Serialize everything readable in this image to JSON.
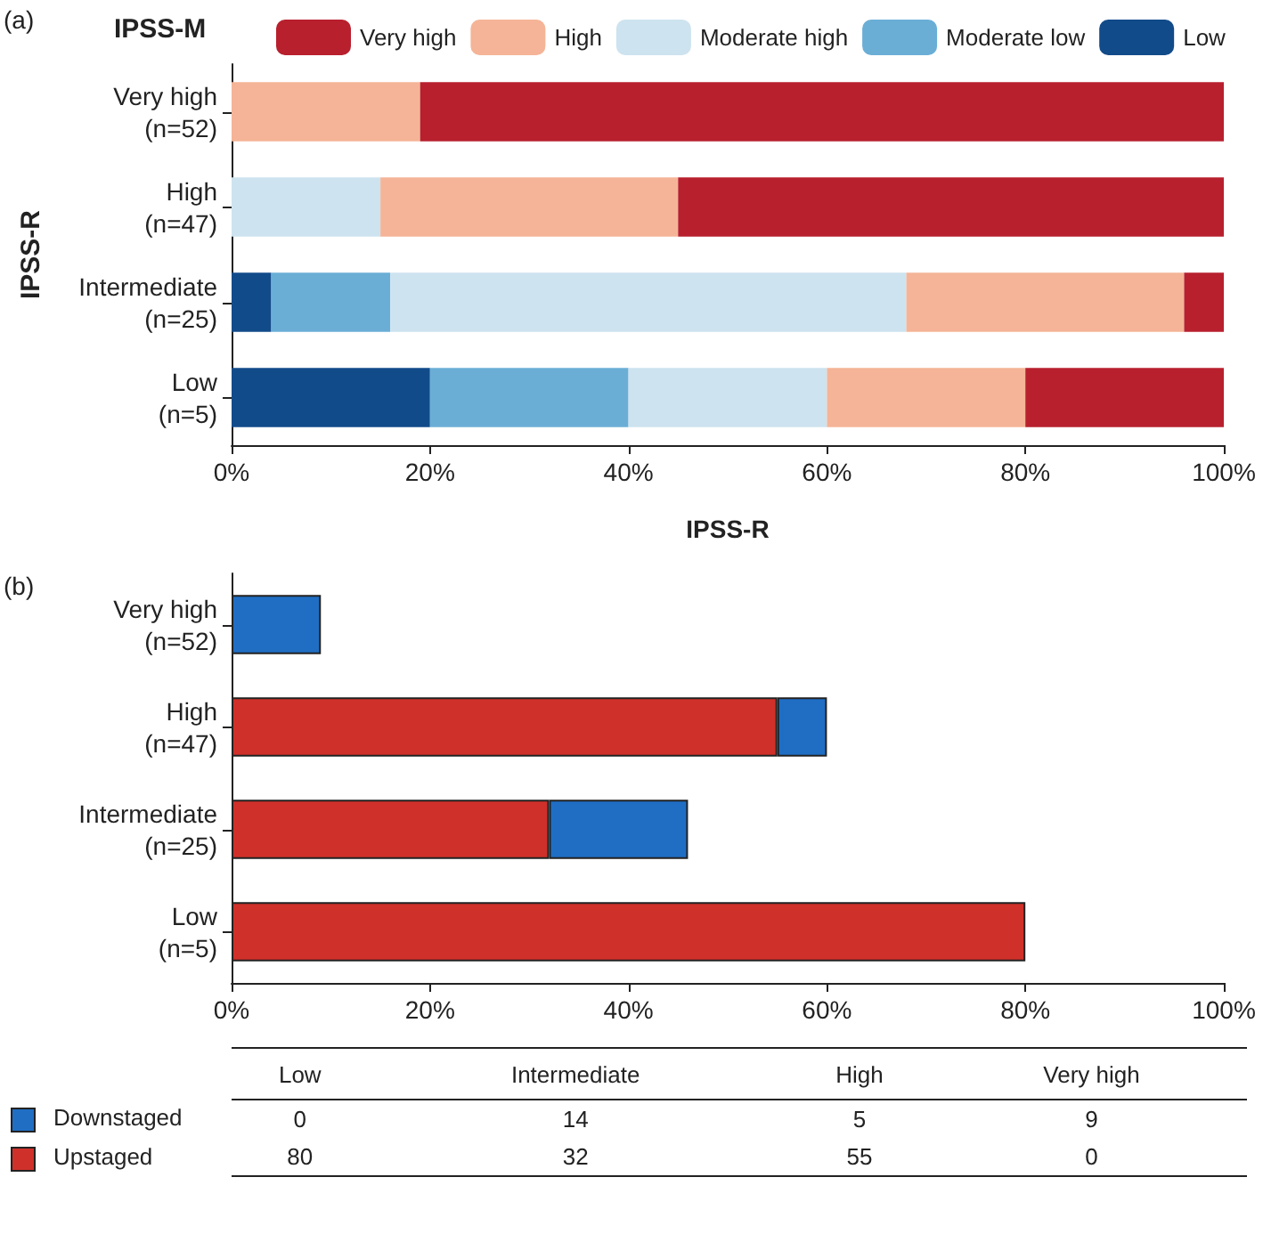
{
  "chart_data": [
    {
      "type": "bar",
      "orientation": "horizontal",
      "stacked": true,
      "legend_title": "IPSS-M",
      "ylabel": "IPSS-R",
      "xlabel": "IPSS-R",
      "annotations": [
        "(a)"
      ],
      "categories": [
        "Very high\n(n=52)",
        "High\n(n=47)",
        "Intermediate\n(n=25)",
        "Low\n(n=5)"
      ],
      "series": [
        {
          "name": "Low",
          "color": "#124b8a",
          "values": [
            0,
            0,
            4,
            20
          ]
        },
        {
          "name": "Moderate low",
          "color": "#6aaed6",
          "values": [
            0,
            0,
            12,
            20
          ]
        },
        {
          "name": "Moderate high",
          "color": "#cde3ef",
          "values": [
            0,
            15,
            52,
            20
          ]
        },
        {
          "name": "High",
          "color": "#f5b497",
          "values": [
            19,
            30,
            28,
            20
          ]
        },
        {
          "name": "Very high",
          "color": "#b8202e",
          "values": [
            81,
            55,
            4,
            20
          ]
        }
      ],
      "xlim": [
        0,
        100
      ],
      "xticks": [
        {
          "value": 0,
          "label": "0%"
        },
        {
          "value": 20,
          "label": "20%"
        },
        {
          "value": 40,
          "label": "40%"
        },
        {
          "value": 60,
          "label": "60%"
        },
        {
          "value": 80,
          "label": "80%"
        },
        {
          "value": 100,
          "label": "100%"
        }
      ],
      "legend": "top"
    },
    {
      "type": "bar",
      "orientation": "horizontal",
      "stacked": true,
      "annotations": [
        "(b)"
      ],
      "categories": [
        "Very high\n(n=52)",
        "High\n(n=47)",
        "Intermediate\n(n=25)",
        "Low\n(n=5)"
      ],
      "series": [
        {
          "color": "#d0302a",
          "values": [
            0,
            55,
            32,
            80
          ]
        },
        {
          "color": "#1f6ec4",
          "values": [
            9,
            5,
            14,
            0
          ]
        }
      ],
      "xlim": [
        0,
        100
      ],
      "xticks": [
        {
          "value": 0,
          "label": "0%"
        },
        {
          "value": 20,
          "label": "20%"
        },
        {
          "value": 40,
          "label": "40%"
        },
        {
          "value": 60,
          "label": "60%"
        },
        {
          "value": 80,
          "label": "80%"
        },
        {
          "value": 100,
          "label": "100%"
        }
      ]
    },
    {
      "type": "other",
      "data_labels": true,
      "categories": [
        "Low",
        "Intermediate",
        "High",
        "Very high"
      ],
      "series": [
        {
          "name": "Downstaged",
          "color": "#1f6ec4",
          "values": [
            0,
            14,
            5,
            9
          ]
        },
        {
          "name": "Upstaged",
          "color": "#d0302a",
          "values": [
            80,
            32,
            55,
            0
          ]
        }
      ]
    }
  ]
}
